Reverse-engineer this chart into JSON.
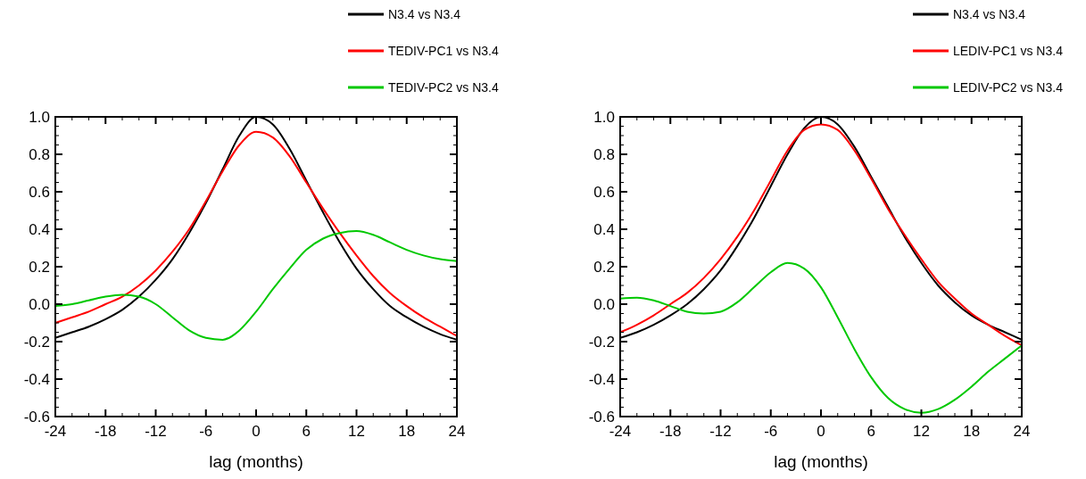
{
  "chart_data": [
    {
      "type": "line",
      "xlabel": "lag (months)",
      "legend": "top",
      "line_style": "solid",
      "marker": "none",
      "grid": false,
      "x": [
        -24,
        -22,
        -20,
        -18,
        -16,
        -14,
        -12,
        -10,
        -8,
        -6,
        -4,
        -2,
        0,
        2,
        4,
        6,
        8,
        10,
        12,
        14,
        16,
        18,
        20,
        22,
        24
      ],
      "xlim": [
        -24,
        24
      ],
      "ylim": [
        -0.6,
        1.0
      ],
      "xticks": [
        {
          "value": -24,
          "label": "-24"
        },
        {
          "value": -22,
          "label": null
        },
        {
          "value": -20,
          "label": null
        },
        {
          "value": -18,
          "label": "-18"
        },
        {
          "value": -16,
          "label": null
        },
        {
          "value": -14,
          "label": null
        },
        {
          "value": -12,
          "label": "-12"
        },
        {
          "value": -10,
          "label": null
        },
        {
          "value": -8,
          "label": null
        },
        {
          "value": -6,
          "label": "-6"
        },
        {
          "value": -4,
          "label": null
        },
        {
          "value": -2,
          "label": null
        },
        0,
        {
          "value": 2,
          "label": null
        },
        {
          "value": 4,
          "label": null
        },
        6,
        {
          "value": 8,
          "label": null
        },
        {
          "value": 10,
          "label": null
        },
        12,
        {
          "value": 14,
          "label": null
        },
        {
          "value": 16,
          "label": null
        },
        18,
        {
          "value": 20,
          "label": null
        },
        {
          "value": 22,
          "label": null
        },
        24
      ],
      "yticks": [
        {
          "value": -0.6,
          "label": "-0.6"
        },
        {
          "value": -0.55,
          "label": null
        },
        {
          "value": -0.5,
          "label": null
        },
        {
          "value": -0.45,
          "label": null
        },
        {
          "value": -0.4,
          "label": "-0.4"
        },
        {
          "value": -0.35,
          "label": null
        },
        {
          "value": -0.3,
          "label": null
        },
        {
          "value": -0.25,
          "label": null
        },
        {
          "value": -0.2,
          "label": "-0.2"
        },
        {
          "value": -0.15,
          "label": null
        },
        {
          "value": -0.1,
          "label": null
        },
        {
          "value": -0.05,
          "label": null
        },
        {
          "value": 0,
          "label": "0.0"
        },
        {
          "value": 0.05,
          "label": null
        },
        {
          "value": 0.1,
          "label": null
        },
        {
          "value": 0.15,
          "label": null
        },
        {
          "value": 0.2,
          "label": "0.2"
        },
        {
          "value": 0.25,
          "label": null
        },
        {
          "value": 0.3,
          "label": null
        },
        {
          "value": 0.35,
          "label": null
        },
        {
          "value": 0.4,
          "label": "0.4"
        },
        {
          "value": 0.45,
          "label": null
        },
        {
          "value": 0.5,
          "label": null
        },
        {
          "value": 0.55,
          "label": null
        },
        {
          "value": 0.6,
          "label": "0.6"
        },
        {
          "value": 0.65,
          "label": null
        },
        {
          "value": 0.7,
          "label": null
        },
        {
          "value": 0.75,
          "label": null
        },
        {
          "value": 0.8,
          "label": "0.8"
        },
        {
          "value": 0.85,
          "label": null
        },
        {
          "value": 0.9,
          "label": null
        },
        {
          "value": 0.95,
          "label": null
        },
        {
          "value": 1.0,
          "label": "1.0"
        }
      ],
      "series": [
        {
          "name": "N3.4 vs N3.4",
          "color": "#000000",
          "values": [
            -0.18,
            -0.15,
            -0.12,
            -0.08,
            -0.03,
            0.04,
            0.13,
            0.24,
            0.38,
            0.54,
            0.72,
            0.9,
            1.0,
            0.96,
            0.83,
            0.66,
            0.49,
            0.33,
            0.19,
            0.08,
            -0.01,
            -0.07,
            -0.12,
            -0.16,
            -0.19
          ]
        },
        {
          "name": "TEDIV-PC1 vs N3.4",
          "color": "#ff0000",
          "values": [
            -0.1,
            -0.07,
            -0.04,
            0.0,
            0.04,
            0.1,
            0.18,
            0.28,
            0.4,
            0.55,
            0.71,
            0.85,
            0.92,
            0.89,
            0.79,
            0.65,
            0.51,
            0.38,
            0.26,
            0.15,
            0.06,
            -0.01,
            -0.07,
            -0.12,
            -0.17
          ]
        },
        {
          "name": "TEDIV-PC2 vs N3.4",
          "color": "#00c800",
          "values": [
            -0.01,
            0.0,
            0.02,
            0.04,
            0.05,
            0.04,
            0.0,
            -0.07,
            -0.14,
            -0.18,
            -0.19,
            -0.14,
            -0.04,
            0.08,
            0.19,
            0.29,
            0.35,
            0.38,
            0.39,
            0.37,
            0.33,
            0.29,
            0.26,
            0.24,
            0.23
          ]
        }
      ]
    },
    {
      "type": "line",
      "xlabel": "lag (months)",
      "legend": "top",
      "line_style": "solid",
      "marker": "none",
      "grid": false,
      "x": [
        -24,
        -22,
        -20,
        -18,
        -16,
        -14,
        -12,
        -10,
        -8,
        -6,
        -4,
        -2,
        0,
        2,
        4,
        6,
        8,
        10,
        12,
        14,
        16,
        18,
        20,
        22,
        24
      ],
      "xlim": [
        -24,
        24
      ],
      "ylim": [
        -0.6,
        1.0
      ],
      "xticks": [
        {
          "value": -24,
          "label": "-24"
        },
        {
          "value": -22,
          "label": null
        },
        {
          "value": -20,
          "label": null
        },
        {
          "value": -18,
          "label": "-18"
        },
        {
          "value": -16,
          "label": null
        },
        {
          "value": -14,
          "label": null
        },
        {
          "value": -12,
          "label": "-12"
        },
        {
          "value": -10,
          "label": null
        },
        {
          "value": -8,
          "label": null
        },
        {
          "value": -6,
          "label": "-6"
        },
        {
          "value": -4,
          "label": null
        },
        {
          "value": -2,
          "label": null
        },
        0,
        {
          "value": 2,
          "label": null
        },
        {
          "value": 4,
          "label": null
        },
        6,
        {
          "value": 8,
          "label": null
        },
        {
          "value": 10,
          "label": null
        },
        12,
        {
          "value": 14,
          "label": null
        },
        {
          "value": 16,
          "label": null
        },
        18,
        {
          "value": 20,
          "label": null
        },
        {
          "value": 22,
          "label": null
        },
        24
      ],
      "yticks": [
        {
          "value": -0.6,
          "label": "-0.6"
        },
        {
          "value": -0.55,
          "label": null
        },
        {
          "value": -0.5,
          "label": null
        },
        {
          "value": -0.45,
          "label": null
        },
        {
          "value": -0.4,
          "label": "-0.4"
        },
        {
          "value": -0.35,
          "label": null
        },
        {
          "value": -0.3,
          "label": null
        },
        {
          "value": -0.25,
          "label": null
        },
        {
          "value": -0.2,
          "label": "-0.2"
        },
        {
          "value": -0.15,
          "label": null
        },
        {
          "value": -0.1,
          "label": null
        },
        {
          "value": -0.05,
          "label": null
        },
        {
          "value": 0,
          "label": "0.0"
        },
        {
          "value": 0.05,
          "label": null
        },
        {
          "value": 0.1,
          "label": null
        },
        {
          "value": 0.15,
          "label": null
        },
        {
          "value": 0.2,
          "label": "0.2"
        },
        {
          "value": 0.25,
          "label": null
        },
        {
          "value": 0.3,
          "label": null
        },
        {
          "value": 0.35,
          "label": null
        },
        {
          "value": 0.4,
          "label": "0.4"
        },
        {
          "value": 0.45,
          "label": null
        },
        {
          "value": 0.5,
          "label": null
        },
        {
          "value": 0.55,
          "label": null
        },
        {
          "value": 0.6,
          "label": "0.6"
        },
        {
          "value": 0.65,
          "label": null
        },
        {
          "value": 0.7,
          "label": null
        },
        {
          "value": 0.75,
          "label": null
        },
        {
          "value": 0.8,
          "label": "0.8"
        },
        {
          "value": 0.85,
          "label": null
        },
        {
          "value": 0.9,
          "label": null
        },
        {
          "value": 0.95,
          "label": null
        },
        {
          "value": 1.0,
          "label": "1.0"
        }
      ],
      "series": [
        {
          "name": "N3.4 vs N3.4",
          "color": "#000000",
          "values": [
            -0.18,
            -0.15,
            -0.11,
            -0.06,
            0.0,
            0.08,
            0.18,
            0.31,
            0.46,
            0.63,
            0.8,
            0.94,
            1.0,
            0.96,
            0.84,
            0.68,
            0.52,
            0.36,
            0.22,
            0.1,
            0.01,
            -0.06,
            -0.11,
            -0.15,
            -0.19
          ]
        },
        {
          "name": "LEDIV-PC1 vs N3.4",
          "color": "#ff0000",
          "values": [
            -0.15,
            -0.11,
            -0.06,
            0.0,
            0.06,
            0.14,
            0.24,
            0.36,
            0.5,
            0.66,
            0.82,
            0.93,
            0.96,
            0.93,
            0.82,
            0.67,
            0.51,
            0.37,
            0.24,
            0.12,
            0.03,
            -0.05,
            -0.11,
            -0.17,
            -0.22
          ]
        },
        {
          "name": "LEDIV-PC2 vs N3.4",
          "color": "#00c800",
          "values": [
            0.03,
            0.035,
            0.02,
            -0.01,
            -0.04,
            -0.05,
            -0.04,
            0.01,
            0.09,
            0.17,
            0.22,
            0.19,
            0.09,
            -0.07,
            -0.24,
            -0.39,
            -0.5,
            -0.56,
            -0.58,
            -0.56,
            -0.51,
            -0.44,
            -0.36,
            -0.29,
            -0.22
          ]
        }
      ]
    }
  ]
}
